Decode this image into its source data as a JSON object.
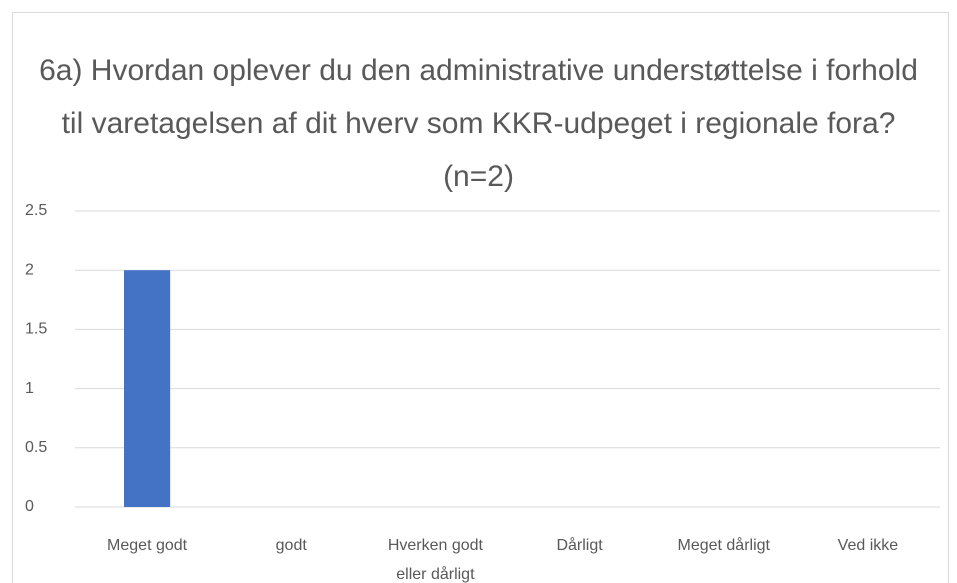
{
  "chart_data": {
    "type": "bar",
    "title": "6a) Hvordan oplever du den administrative understøttelse i forhold til varetagelsen af dit hverv som KKR-udpeget i regionale fora? (n=2)",
    "categories": [
      "Meget godt",
      "godt",
      "Hverken godt eller dårligt",
      "Dårligt",
      "Meget dårligt",
      "Ved ikke"
    ],
    "values": [
      2,
      0,
      0,
      0,
      0,
      0
    ],
    "color": "#4472c4",
    "ylim": [
      0,
      2.5
    ],
    "yticks": [
      0,
      0.5,
      1,
      1.5,
      2,
      2.5
    ],
    "grid": true
  }
}
